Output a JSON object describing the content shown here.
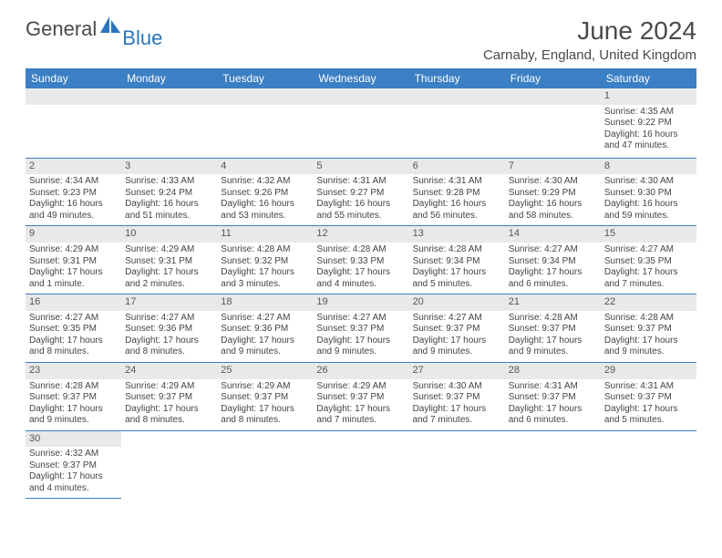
{
  "logo": {
    "general": "General",
    "blue": "Blue"
  },
  "title": "June 2024",
  "location": "Carnaby, England, United Kingdom",
  "colors": {
    "header_bg": "#3b7fc4",
    "header_text": "#ffffff",
    "daynum_bg": "#e9e9e9",
    "border": "#3b7fc4",
    "logo_blue": "#2b76bb",
    "text": "#4a4a4a"
  },
  "dayHeaders": [
    "Sunday",
    "Monday",
    "Tuesday",
    "Wednesday",
    "Thursday",
    "Friday",
    "Saturday"
  ],
  "weeks": [
    [
      null,
      null,
      null,
      null,
      null,
      null,
      {
        "n": "1",
        "sr": "Sunrise: 4:35 AM",
        "ss": "Sunset: 9:22 PM",
        "dl": "Daylight: 16 hours and 47 minutes."
      }
    ],
    [
      {
        "n": "2",
        "sr": "Sunrise: 4:34 AM",
        "ss": "Sunset: 9:23 PM",
        "dl": "Daylight: 16 hours and 49 minutes."
      },
      {
        "n": "3",
        "sr": "Sunrise: 4:33 AM",
        "ss": "Sunset: 9:24 PM",
        "dl": "Daylight: 16 hours and 51 minutes."
      },
      {
        "n": "4",
        "sr": "Sunrise: 4:32 AM",
        "ss": "Sunset: 9:26 PM",
        "dl": "Daylight: 16 hours and 53 minutes."
      },
      {
        "n": "5",
        "sr": "Sunrise: 4:31 AM",
        "ss": "Sunset: 9:27 PM",
        "dl": "Daylight: 16 hours and 55 minutes."
      },
      {
        "n": "6",
        "sr": "Sunrise: 4:31 AM",
        "ss": "Sunset: 9:28 PM",
        "dl": "Daylight: 16 hours and 56 minutes."
      },
      {
        "n": "7",
        "sr": "Sunrise: 4:30 AM",
        "ss": "Sunset: 9:29 PM",
        "dl": "Daylight: 16 hours and 58 minutes."
      },
      {
        "n": "8",
        "sr": "Sunrise: 4:30 AM",
        "ss": "Sunset: 9:30 PM",
        "dl": "Daylight: 16 hours and 59 minutes."
      }
    ],
    [
      {
        "n": "9",
        "sr": "Sunrise: 4:29 AM",
        "ss": "Sunset: 9:31 PM",
        "dl": "Daylight: 17 hours and 1 minute."
      },
      {
        "n": "10",
        "sr": "Sunrise: 4:29 AM",
        "ss": "Sunset: 9:31 PM",
        "dl": "Daylight: 17 hours and 2 minutes."
      },
      {
        "n": "11",
        "sr": "Sunrise: 4:28 AM",
        "ss": "Sunset: 9:32 PM",
        "dl": "Daylight: 17 hours and 3 minutes."
      },
      {
        "n": "12",
        "sr": "Sunrise: 4:28 AM",
        "ss": "Sunset: 9:33 PM",
        "dl": "Daylight: 17 hours and 4 minutes."
      },
      {
        "n": "13",
        "sr": "Sunrise: 4:28 AM",
        "ss": "Sunset: 9:34 PM",
        "dl": "Daylight: 17 hours and 5 minutes."
      },
      {
        "n": "14",
        "sr": "Sunrise: 4:27 AM",
        "ss": "Sunset: 9:34 PM",
        "dl": "Daylight: 17 hours and 6 minutes."
      },
      {
        "n": "15",
        "sr": "Sunrise: 4:27 AM",
        "ss": "Sunset: 9:35 PM",
        "dl": "Daylight: 17 hours and 7 minutes."
      }
    ],
    [
      {
        "n": "16",
        "sr": "Sunrise: 4:27 AM",
        "ss": "Sunset: 9:35 PM",
        "dl": "Daylight: 17 hours and 8 minutes."
      },
      {
        "n": "17",
        "sr": "Sunrise: 4:27 AM",
        "ss": "Sunset: 9:36 PM",
        "dl": "Daylight: 17 hours and 8 minutes."
      },
      {
        "n": "18",
        "sr": "Sunrise: 4:27 AM",
        "ss": "Sunset: 9:36 PM",
        "dl": "Daylight: 17 hours and 9 minutes."
      },
      {
        "n": "19",
        "sr": "Sunrise: 4:27 AM",
        "ss": "Sunset: 9:37 PM",
        "dl": "Daylight: 17 hours and 9 minutes."
      },
      {
        "n": "20",
        "sr": "Sunrise: 4:27 AM",
        "ss": "Sunset: 9:37 PM",
        "dl": "Daylight: 17 hours and 9 minutes."
      },
      {
        "n": "21",
        "sr": "Sunrise: 4:28 AM",
        "ss": "Sunset: 9:37 PM",
        "dl": "Daylight: 17 hours and 9 minutes."
      },
      {
        "n": "22",
        "sr": "Sunrise: 4:28 AM",
        "ss": "Sunset: 9:37 PM",
        "dl": "Daylight: 17 hours and 9 minutes."
      }
    ],
    [
      {
        "n": "23",
        "sr": "Sunrise: 4:28 AM",
        "ss": "Sunset: 9:37 PM",
        "dl": "Daylight: 17 hours and 9 minutes."
      },
      {
        "n": "24",
        "sr": "Sunrise: 4:29 AM",
        "ss": "Sunset: 9:37 PM",
        "dl": "Daylight: 17 hours and 8 minutes."
      },
      {
        "n": "25",
        "sr": "Sunrise: 4:29 AM",
        "ss": "Sunset: 9:37 PM",
        "dl": "Daylight: 17 hours and 8 minutes."
      },
      {
        "n": "26",
        "sr": "Sunrise: 4:29 AM",
        "ss": "Sunset: 9:37 PM",
        "dl": "Daylight: 17 hours and 7 minutes."
      },
      {
        "n": "27",
        "sr": "Sunrise: 4:30 AM",
        "ss": "Sunset: 9:37 PM",
        "dl": "Daylight: 17 hours and 7 minutes."
      },
      {
        "n": "28",
        "sr": "Sunrise: 4:31 AM",
        "ss": "Sunset: 9:37 PM",
        "dl": "Daylight: 17 hours and 6 minutes."
      },
      {
        "n": "29",
        "sr": "Sunrise: 4:31 AM",
        "ss": "Sunset: 9:37 PM",
        "dl": "Daylight: 17 hours and 5 minutes."
      }
    ],
    [
      {
        "n": "30",
        "sr": "Sunrise: 4:32 AM",
        "ss": "Sunset: 9:37 PM",
        "dl": "Daylight: 17 hours and 4 minutes."
      },
      null,
      null,
      null,
      null,
      null,
      null
    ]
  ]
}
